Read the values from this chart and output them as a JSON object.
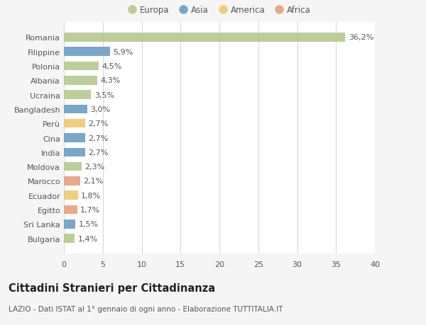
{
  "categories": [
    "Romania",
    "Filippine",
    "Polonia",
    "Albania",
    "Ucraina",
    "Bangladesh",
    "Perù",
    "Cina",
    "India",
    "Moldova",
    "Marocco",
    "Ecuador",
    "Egitto",
    "Sri Lanka",
    "Bulgaria"
  ],
  "values": [
    36.2,
    5.9,
    4.5,
    4.3,
    3.5,
    3.0,
    2.7,
    2.7,
    2.7,
    2.3,
    2.1,
    1.8,
    1.7,
    1.5,
    1.4
  ],
  "labels": [
    "36,2%",
    "5,9%",
    "4,5%",
    "4,3%",
    "3,5%",
    "3,0%",
    "2,7%",
    "2,7%",
    "2,7%",
    "2,3%",
    "2,1%",
    "1,8%",
    "1,7%",
    "1,5%",
    "1,4%"
  ],
  "continents": [
    "Europa",
    "Asia",
    "Europa",
    "Europa",
    "Europa",
    "Asia",
    "America",
    "Asia",
    "Asia",
    "Europa",
    "Africa",
    "America",
    "Africa",
    "Asia",
    "Europa"
  ],
  "colors": {
    "Europa": "#b5c98e",
    "Asia": "#6b9ec7",
    "America": "#f0c96e",
    "Africa": "#e8a07a"
  },
  "title": "Cittadini Stranieri per Cittadinanza",
  "subtitle": "LAZIO - Dati ISTAT al 1° gennaio di ogni anno - Elaborazione TUTTITALIA.IT",
  "xlim": [
    0,
    40
  ],
  "xticks": [
    0,
    5,
    10,
    15,
    20,
    25,
    30,
    35,
    40
  ],
  "background_color": "#f5f5f5",
  "bar_background_color": "#ffffff",
  "grid_color": "#d8d8d8",
  "text_color": "#555555",
  "label_fontsize": 8,
  "tick_fontsize": 8,
  "title_fontsize": 10.5,
  "subtitle_fontsize": 7.5,
  "legend_fontsize": 8.5
}
